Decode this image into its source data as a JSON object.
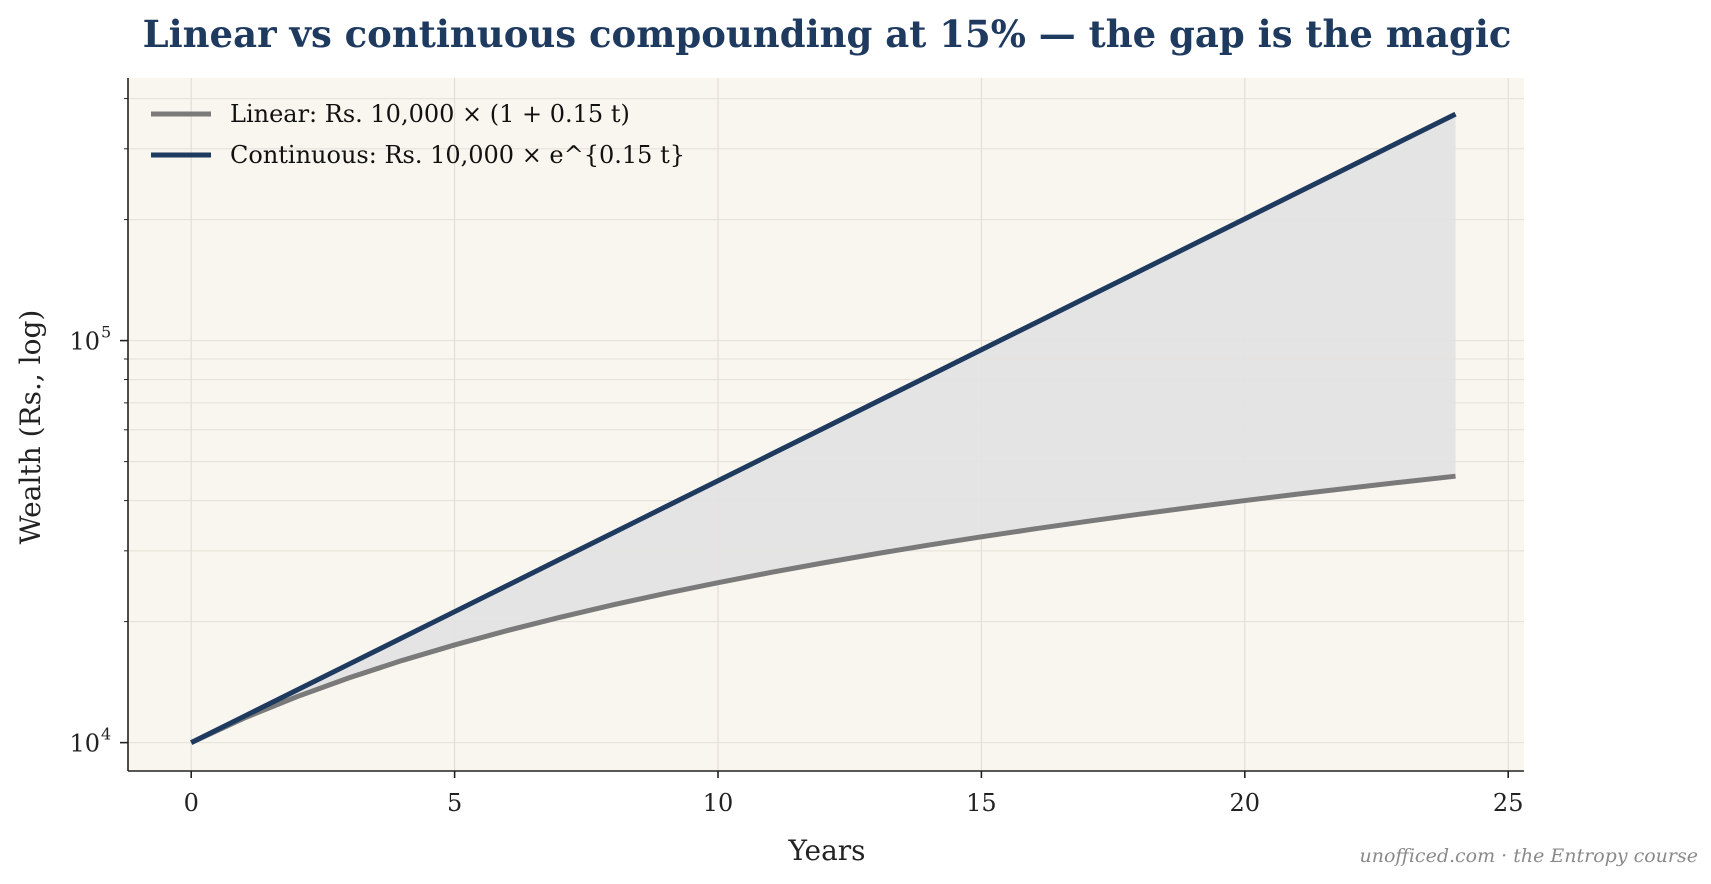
{
  "chart_data": {
    "type": "line",
    "title": "Linear vs continuous compounding at 15% — the gap is the magic",
    "xlabel": "Years",
    "ylabel": "Wealth (Rs., log)",
    "x_ticks": [
      "0",
      "5",
      "10",
      "15",
      "20",
      "25"
    ],
    "y_ticks": [
      {
        "value": 10000,
        "base": "10",
        "exp": "4"
      },
      {
        "value": 100000,
        "base": "10",
        "exp": "5"
      }
    ],
    "xlim": [
      -1.2,
      25.3
    ],
    "ylim": [
      8500,
      450000
    ],
    "yscale": "log",
    "grid": true,
    "legend_position": "top-left",
    "fill_between": true,
    "fill_color": "#e2e2e2",
    "plot_background": "#f9f6ef",
    "x": [
      0,
      1,
      2,
      3,
      4,
      5,
      6,
      7,
      8,
      9,
      10,
      11,
      12,
      13,
      14,
      15,
      16,
      17,
      18,
      19,
      20,
      21,
      22,
      23,
      24
    ],
    "series": [
      {
        "name": "Linear: Rs. 10,000 × (1 + 0.15 t)",
        "color": "#7a7a7a",
        "values": [
          10000,
          11500,
          13000,
          14500,
          16000,
          17500,
          19000,
          20500,
          22000,
          23500,
          25000,
          26500,
          28000,
          29500,
          31000,
          32500,
          34000,
          35500,
          37000,
          38500,
          40000,
          41500,
          43000,
          44500,
          46000
        ]
      },
      {
        "name": "Continuous: Rs. 10,000 × e^{0.15 t}",
        "color": "#1f3a5f",
        "values": [
          10000,
          11618,
          13499,
          15683,
          18221,
          21170,
          24596,
          28577,
          33201,
          38574,
          44817,
          52070,
          60496,
          70287,
          81662,
          94877,
          110232,
          128071,
          148797,
          172878,
          200855,
          233361,
          271126,
          315004,
          365982
        ]
      }
    ],
    "footer": "unofficed.com · the Entropy course"
  }
}
